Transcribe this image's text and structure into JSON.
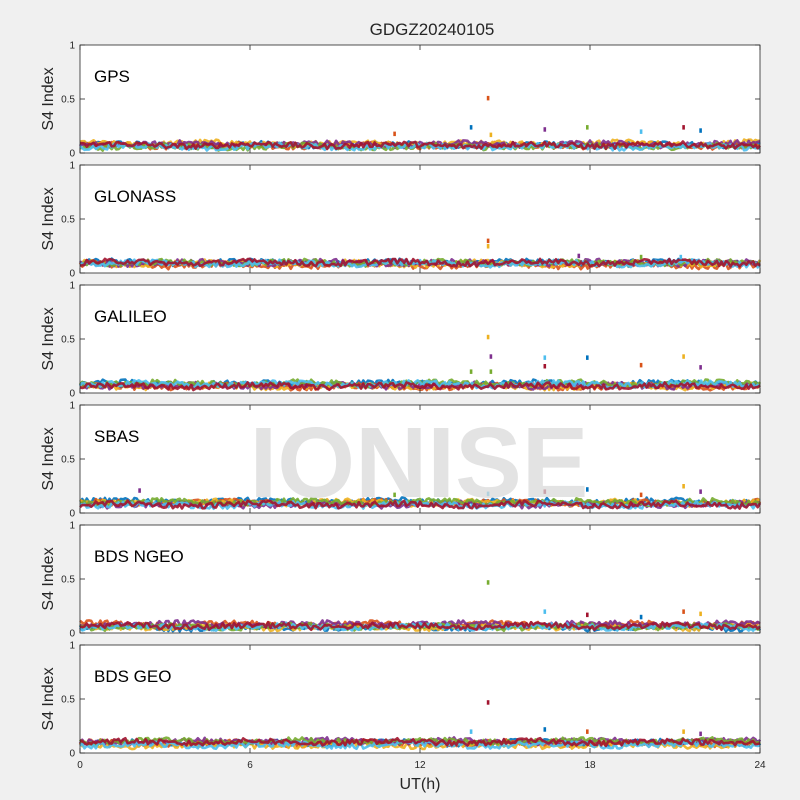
{
  "chart_data": {
    "type": "scatter",
    "title": "GDGZ20240105",
    "xlabel": "UT(h)",
    "ylabel": "S4 Index",
    "xlim": [
      0,
      24
    ],
    "ylim": [
      0,
      1
    ],
    "xticks": [
      "0",
      "6",
      "12",
      "18",
      "24"
    ],
    "yticks": [
      "0",
      "0.5",
      "1"
    ],
    "watermark": "IONISE",
    "grid": false,
    "series_colors": [
      "#0072bd",
      "#d95319",
      "#edb120",
      "#7e2f8e",
      "#77ac30",
      "#4dbeee",
      "#a2142f"
    ],
    "panels": [
      {
        "label": "GPS",
        "baseline_median": 0.07,
        "spikes": [
          {
            "x": 13.8,
            "y": 0.24
          },
          {
            "x": 14.4,
            "y": 0.51
          },
          {
            "x": 14.5,
            "y": 0.17
          },
          {
            "x": 16.4,
            "y": 0.22
          },
          {
            "x": 17.9,
            "y": 0.24
          },
          {
            "x": 19.8,
            "y": 0.2
          },
          {
            "x": 21.3,
            "y": 0.24
          },
          {
            "x": 21.9,
            "y": 0.21
          },
          {
            "x": 11.1,
            "y": 0.18
          }
        ]
      },
      {
        "label": "GLONASS",
        "baseline_median": 0.08,
        "spikes": [
          {
            "x": 14.4,
            "y": 0.3
          },
          {
            "x": 14.4,
            "y": 0.25
          },
          {
            "x": 17.6,
            "y": 0.16
          },
          {
            "x": 19.8,
            "y": 0.15
          },
          {
            "x": 21.2,
            "y": 0.15
          }
        ]
      },
      {
        "label": "GALILEO",
        "baseline_median": 0.07,
        "spikes": [
          {
            "x": 14.4,
            "y": 0.52
          },
          {
            "x": 14.5,
            "y": 0.34
          },
          {
            "x": 14.5,
            "y": 0.2
          },
          {
            "x": 16.4,
            "y": 0.33
          },
          {
            "x": 16.4,
            "y": 0.25
          },
          {
            "x": 17.9,
            "y": 0.33
          },
          {
            "x": 19.8,
            "y": 0.26
          },
          {
            "x": 21.3,
            "y": 0.34
          },
          {
            "x": 21.9,
            "y": 0.24
          },
          {
            "x": 13.8,
            "y": 0.2
          }
        ]
      },
      {
        "label": "SBAS",
        "baseline_median": 0.09,
        "spikes": [
          {
            "x": 2.1,
            "y": 0.21
          },
          {
            "x": 11.1,
            "y": 0.17
          },
          {
            "x": 14.4,
            "y": 0.18
          },
          {
            "x": 16.4,
            "y": 0.2
          },
          {
            "x": 17.9,
            "y": 0.22
          },
          {
            "x": 19.8,
            "y": 0.17
          },
          {
            "x": 21.3,
            "y": 0.25
          },
          {
            "x": 21.9,
            "y": 0.2
          }
        ]
      },
      {
        "label": "BDS NGEO",
        "baseline_median": 0.07,
        "spikes": [
          {
            "x": 14.4,
            "y": 0.47
          },
          {
            "x": 16.4,
            "y": 0.2
          },
          {
            "x": 17.9,
            "y": 0.17
          },
          {
            "x": 19.8,
            "y": 0.15
          },
          {
            "x": 21.3,
            "y": 0.2
          },
          {
            "x": 21.9,
            "y": 0.18
          }
        ]
      },
      {
        "label": "BDS GEO",
        "baseline_median": 0.09,
        "spikes": [
          {
            "x": 13.8,
            "y": 0.2
          },
          {
            "x": 14.4,
            "y": 0.47
          },
          {
            "x": 16.4,
            "y": 0.22
          },
          {
            "x": 17.9,
            "y": 0.2
          },
          {
            "x": 21.3,
            "y": 0.2
          },
          {
            "x": 21.9,
            "y": 0.18
          }
        ]
      }
    ]
  }
}
